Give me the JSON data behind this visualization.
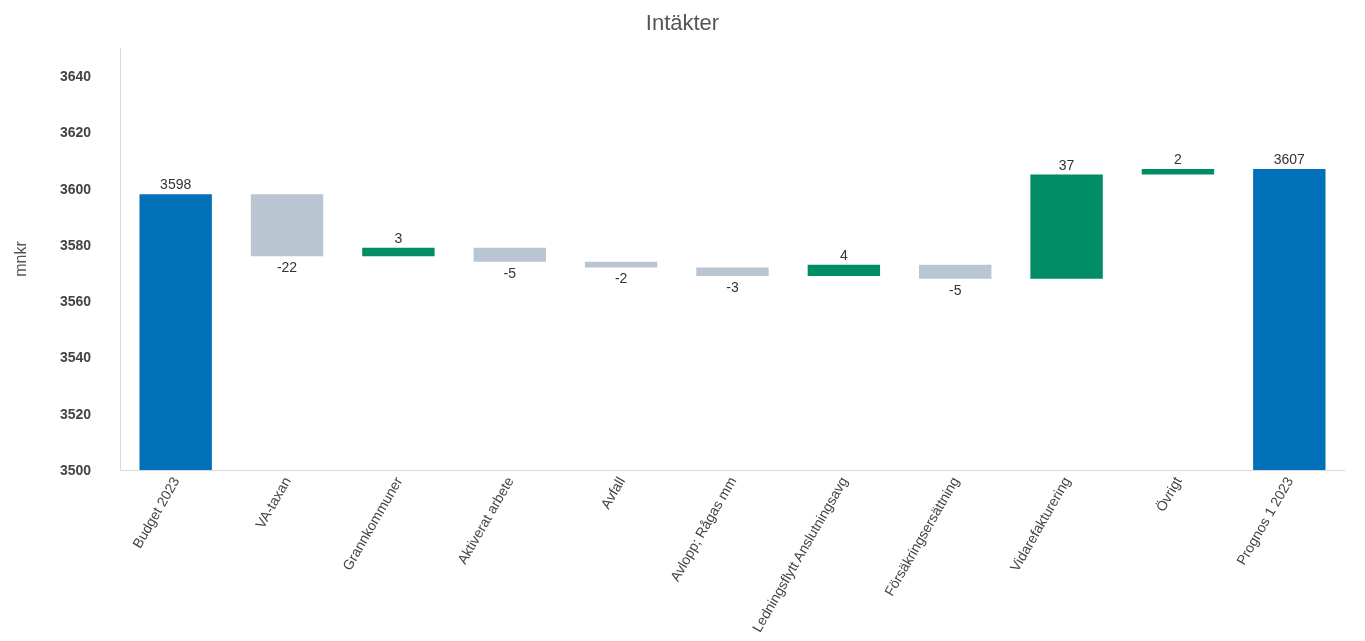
{
  "chart_data": {
    "type": "bar",
    "title": "Intäkter",
    "ylabel": "mnkr",
    "categories": [
      "Budget 2023",
      "VA-taxan",
      "Grannkommuner",
      "Aktiverat arbete",
      "Avfall",
      "Avlopp; Rågas mm",
      "Ledningsflytt Anslutningsavg",
      "Försäkringsersättning",
      "Vidarefakturering",
      "Övrigt",
      "Prognos 1 2023"
    ],
    "values": [
      3598,
      -22,
      3,
      -5,
      -2,
      -3,
      4,
      -5,
      37,
      2,
      3607
    ],
    "base": [
      null,
      3598,
      3576,
      3579,
      3574,
      3572,
      3569,
      3573,
      3568,
      3605,
      null
    ],
    "colors": [
      "#0070b8",
      "#b9c5d1",
      "#008c64",
      "#b9c5d1",
      "#b9c5d1",
      "#b9c5d1",
      "#008c64",
      "#b9c5d1",
      "#008c64",
      "#008c64",
      "#0070b8"
    ],
    "ylim": [
      3500,
      3650
    ],
    "yticks": [
      3500,
      3520,
      3540,
      3560,
      3580,
      3600,
      3620,
      3640
    ],
    "grid": false,
    "data_labels": true
  }
}
